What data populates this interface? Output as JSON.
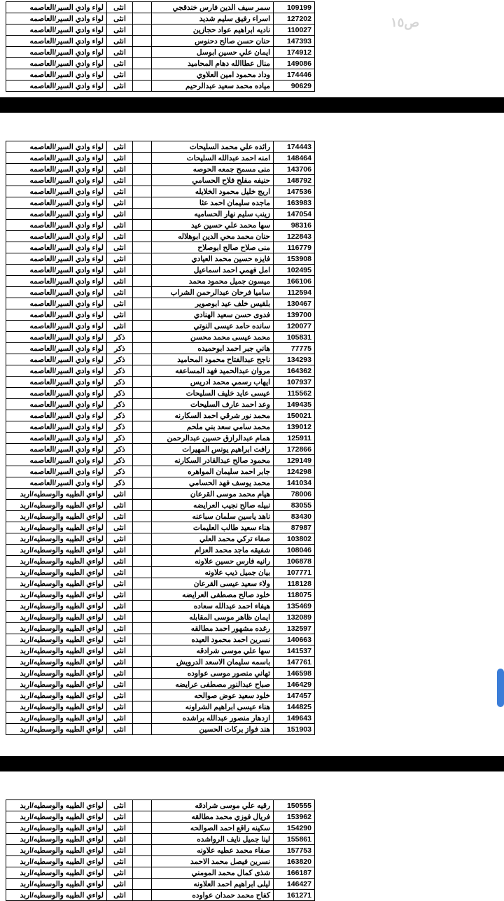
{
  "location1": "لواء وادي السير/العاصمه",
  "location2": "لواءي الطيبه والوسطيه/اربد",
  "genF": "انثى",
  "genM": "ذكر",
  "table1": [
    {
      "id": "109199",
      "name": "سمر سيف الدين فارس خندقجي",
      "g": "F",
      "loc": 1
    },
    {
      "id": "127202",
      "name": "اسراء رفيق سليم شديد",
      "g": "F",
      "loc": 1
    },
    {
      "id": "110027",
      "name": "ناديه ابراهيم عواد حجازين",
      "g": "F",
      "loc": 1
    },
    {
      "id": "147393",
      "name": "حنان حسن صالح دحنوس",
      "g": "F",
      "loc": 1
    },
    {
      "id": "174912",
      "name": "ايمان علي حسين ابوسل",
      "g": "F",
      "loc": 1
    },
    {
      "id": "149086",
      "name": "منال عطاالله دهام المحاميد",
      "g": "F",
      "loc": 1
    },
    {
      "id": "174446",
      "name": "وداد محمود امين العلاوي",
      "g": "F",
      "loc": 1
    },
    {
      "id": "90629",
      "name": "مياده محمد سعيد عبدالرحيم",
      "g": "F",
      "loc": 1
    }
  ],
  "table2": [
    {
      "id": "174443",
      "name": "رائده علي محمد السليحات",
      "g": "F",
      "loc": 1
    },
    {
      "id": "148464",
      "name": "امنه احمد عبدالله السليحات",
      "g": "F",
      "loc": 1
    },
    {
      "id": "143706",
      "name": "منى مسمح جمعه الحوصه",
      "g": "F",
      "loc": 1
    },
    {
      "id": "148792",
      "name": "حنيفه مفلح فلاح الحسامي",
      "g": "F",
      "loc": 1
    },
    {
      "id": "147536",
      "name": "اريج خليل محمود الخلايله",
      "g": "F",
      "loc": 1
    },
    {
      "id": "163983",
      "name": "ماجده سليمان احمد عثا",
      "g": "F",
      "loc": 1
    },
    {
      "id": "147054",
      "name": "زينب سليم نهار الحساميه",
      "g": "F",
      "loc": 1
    },
    {
      "id": "98316",
      "name": "سها محمد علي حسين عيد",
      "g": "F",
      "loc": 1
    },
    {
      "id": "122843",
      "name": "حنان محمد محي الدين ابوهلاله",
      "g": "F",
      "loc": 1
    },
    {
      "id": "116779",
      "name": "منى صلاح صالح ابوصلاح",
      "g": "F",
      "loc": 1
    },
    {
      "id": "153908",
      "name": "فايزه حسين محمد العيادي",
      "g": "F",
      "loc": 1
    },
    {
      "id": "102495",
      "name": "امل فهمي احمد اسماعيل",
      "g": "F",
      "loc": 1
    },
    {
      "id": "166106",
      "name": "ميسون جميل محمود محمد",
      "g": "F",
      "loc": 1
    },
    {
      "id": "112594",
      "name": "ساميا فرحان عبدالرحمن الشراب",
      "g": "F",
      "loc": 1
    },
    {
      "id": "130467",
      "name": "بلقيس خلف عيد ابوصوير",
      "g": "F",
      "loc": 1
    },
    {
      "id": "139700",
      "name": "فدوى حسن سعيد الهنادي",
      "g": "F",
      "loc": 1
    },
    {
      "id": "120077",
      "name": "سانده حامد عيسى النوتي",
      "g": "F",
      "loc": 1
    },
    {
      "id": "105831",
      "name": "محمد عيسى محمد محسن",
      "g": "M",
      "loc": 1
    },
    {
      "id": "77775",
      "name": "هاني جبر احمد ابوحميده",
      "g": "M",
      "loc": 1
    },
    {
      "id": "134293",
      "name": "ناجح عبدالفتاح محمود المحاميد",
      "g": "M",
      "loc": 1
    },
    {
      "id": "164362",
      "name": "مروان عبدالحميد فهد المساعفه",
      "g": "M",
      "loc": 1
    },
    {
      "id": "107937",
      "name": "ايهاب رسمي محمد ادريس",
      "g": "M",
      "loc": 1
    },
    {
      "id": "115562",
      "name": "عيسى عايد خليف السليحات",
      "g": "M",
      "loc": 1
    },
    {
      "id": "149435",
      "name": "وعد احمد عارف السليحات",
      "g": "M",
      "loc": 1
    },
    {
      "id": "150021",
      "name": "محمد نور شرقي احمد السكارنه",
      "g": "M",
      "loc": 1
    },
    {
      "id": "139012",
      "name": "محمد سامي سعد بني ملحم",
      "g": "M",
      "loc": 1
    },
    {
      "id": "125911",
      "name": "همام عبدالرازق حسين عبدالرحمن",
      "g": "M",
      "loc": 1
    },
    {
      "id": "172866",
      "name": "رافت ابراهيم يونس المهيرات",
      "g": "M",
      "loc": 1
    },
    {
      "id": "129149",
      "name": "محمود صالح عبدالقادر السكارنه",
      "g": "M",
      "loc": 1
    },
    {
      "id": "124298",
      "name": "جابر احمد سليمان المواهره",
      "g": "M",
      "loc": 1
    },
    {
      "id": "141034",
      "name": "محمد يوسف فهد الحسامي",
      "g": "M",
      "loc": 1
    },
    {
      "id": "78006",
      "name": "هيام محمد موسى القرعان",
      "g": "F",
      "loc": 2
    },
    {
      "id": "83055",
      "name": "نبيله صالح نجيب العرايضه",
      "g": "F",
      "loc": 2
    },
    {
      "id": "83430",
      "name": "ناهد ياسين سلمان سباعنه",
      "g": "F",
      "loc": 2
    },
    {
      "id": "87987",
      "name": "هناء سعيد طالب العليمات",
      "g": "F",
      "loc": 2
    },
    {
      "id": "103802",
      "name": "صفاء تركي محمد العلي",
      "g": "F",
      "loc": 2
    },
    {
      "id": "108046",
      "name": "شفيقه ماجد محمد العزام",
      "g": "F",
      "loc": 2
    },
    {
      "id": "106878",
      "name": "رانيه فارس حسين علاونه",
      "g": "F",
      "loc": 2
    },
    {
      "id": "107771",
      "name": "بيان جميل ذيب علاونه",
      "g": "F",
      "loc": 2
    },
    {
      "id": "118128",
      "name": "ولاء سعيد عيسى القرعان",
      "g": "F",
      "loc": 2
    },
    {
      "id": "118075",
      "name": "خلود صالح مصطفى العرايضه",
      "g": "F",
      "loc": 2
    },
    {
      "id": "135469",
      "name": "هيفاء احمد عبدالله سعاده",
      "g": "F",
      "loc": 2
    },
    {
      "id": "132089",
      "name": "ايمان ظاهر موسى المقابله",
      "g": "F",
      "loc": 2
    },
    {
      "id": "132597",
      "name": "رغده مشهور احمد مطالقه",
      "g": "F",
      "loc": 2
    },
    {
      "id": "140663",
      "name": "نسرين احمد محمود العيده",
      "g": "F",
      "loc": 2
    },
    {
      "id": "141537",
      "name": "سها علي موسى شرادقه",
      "g": "F",
      "loc": 2
    },
    {
      "id": "147761",
      "name": "باسمه سليمان الاسعد الدرويش",
      "g": "F",
      "loc": 2
    },
    {
      "id": "146598",
      "name": "تهاني منصور موسى عواوده",
      "g": "F",
      "loc": 2
    },
    {
      "id": "146429",
      "name": "صباح عبدالنور مصطفى عرايضه",
      "g": "F",
      "loc": 2
    },
    {
      "id": "147457",
      "name": "خلود سعيد عوض صوالحه",
      "g": "F",
      "loc": 2
    },
    {
      "id": "144825",
      "name": "هناء عيسى ابراهيم الشراونه",
      "g": "F",
      "loc": 2
    },
    {
      "id": "149643",
      "name": "ازدهار منصور عبدالله براشده",
      "g": "F",
      "loc": 2
    },
    {
      "id": "151903",
      "name": "هند فواز بركات الحسين",
      "g": "F",
      "loc": 2
    }
  ],
  "table3": [
    {
      "id": "150555",
      "name": "رقيه علي موسى شرادقه",
      "g": "F",
      "loc": 2
    },
    {
      "id": "153962",
      "name": "فريال فوزي محمد مطالقه",
      "g": "F",
      "loc": 2
    },
    {
      "id": "154290",
      "name": "سكينه راقع احمد الصوالحه",
      "g": "F",
      "loc": 2
    },
    {
      "id": "155861",
      "name": "لينا جميل نايف الرواشده",
      "g": "F",
      "loc": 2
    },
    {
      "id": "157753",
      "name": "صفاء محمد عطيه علاونه",
      "g": "F",
      "loc": 2
    },
    {
      "id": "163820",
      "name": "نسرين فيصل محمد الاحمد",
      "g": "F",
      "loc": 2
    },
    {
      "id": "166187",
      "name": "شذى كمال محمد المومني",
      "g": "F",
      "loc": 2
    },
    {
      "id": "146427",
      "name": "ليلى ابراهيم احمد العلاونه",
      "g": "F",
      "loc": 2
    },
    {
      "id": "161271",
      "name": "كفاح محمد حمدان عواوده",
      "g": "F",
      "loc": 2
    }
  ]
}
